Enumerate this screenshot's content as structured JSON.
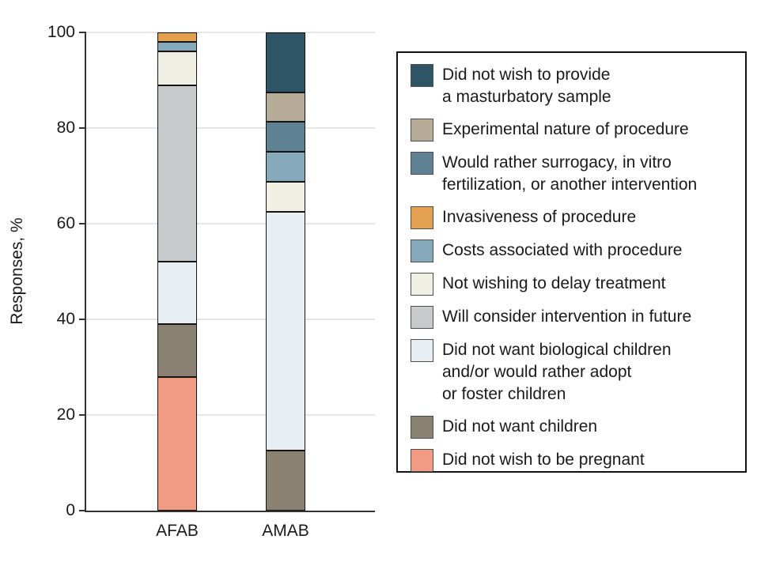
{
  "figure": {
    "colors": {
      "axis": "#333333",
      "gridline": "#e5e5e5",
      "text": "#1a1a1a",
      "segment_border": "#141414",
      "legend_border": "#111111"
    }
  },
  "chart_data": {
    "type": "bar",
    "stacked": true,
    "title": "",
    "xlabel": "",
    "ylabel": "Responses, %",
    "ylim": [
      0,
      100
    ],
    "y_ticks": [
      0,
      20,
      40,
      60,
      80,
      100
    ],
    "grid": true,
    "legend_position": "right",
    "categories": [
      "AFAB",
      "AMAB"
    ],
    "series": [
      {
        "name": "Did not wish to provide\na masturbatory sample",
        "color": "#2E5565",
        "values": [
          0,
          12.5
        ]
      },
      {
        "name": "Experimental nature of procedure",
        "color": "#B5AB97",
        "values": [
          0,
          6.25
        ]
      },
      {
        "name": "Would rather surrogacy, in vitro\nfertilization, or another intervention",
        "color": "#5E8193",
        "values": [
          0,
          6.25
        ]
      },
      {
        "name": "Invasiveness of procedure",
        "color": "#E2A050",
        "values": [
          2,
          0
        ]
      },
      {
        "name": "Costs associated with procedure",
        "color": "#87A9BC",
        "values": [
          2,
          6.25
        ]
      },
      {
        "name": "Not wishing to delay treatment",
        "color": "#EFEFE3",
        "values": [
          7,
          6.25
        ]
      },
      {
        "name": "Will consider intervention in future",
        "color": "#C8C9CB",
        "values": [
          37,
          0
        ]
      },
      {
        "name": "Did not want biological children\nand/or would rather adopt\nor foster children",
        "color": "#E7EEF3",
        "values": [
          13,
          50
        ]
      },
      {
        "name": "Did not want children",
        "color": "#8A8173",
        "values": [
          11,
          12.5
        ]
      },
      {
        "name": "Did not wish to be pregnant",
        "color": "#F29B84",
        "values": [
          28,
          0
        ]
      }
    ]
  }
}
